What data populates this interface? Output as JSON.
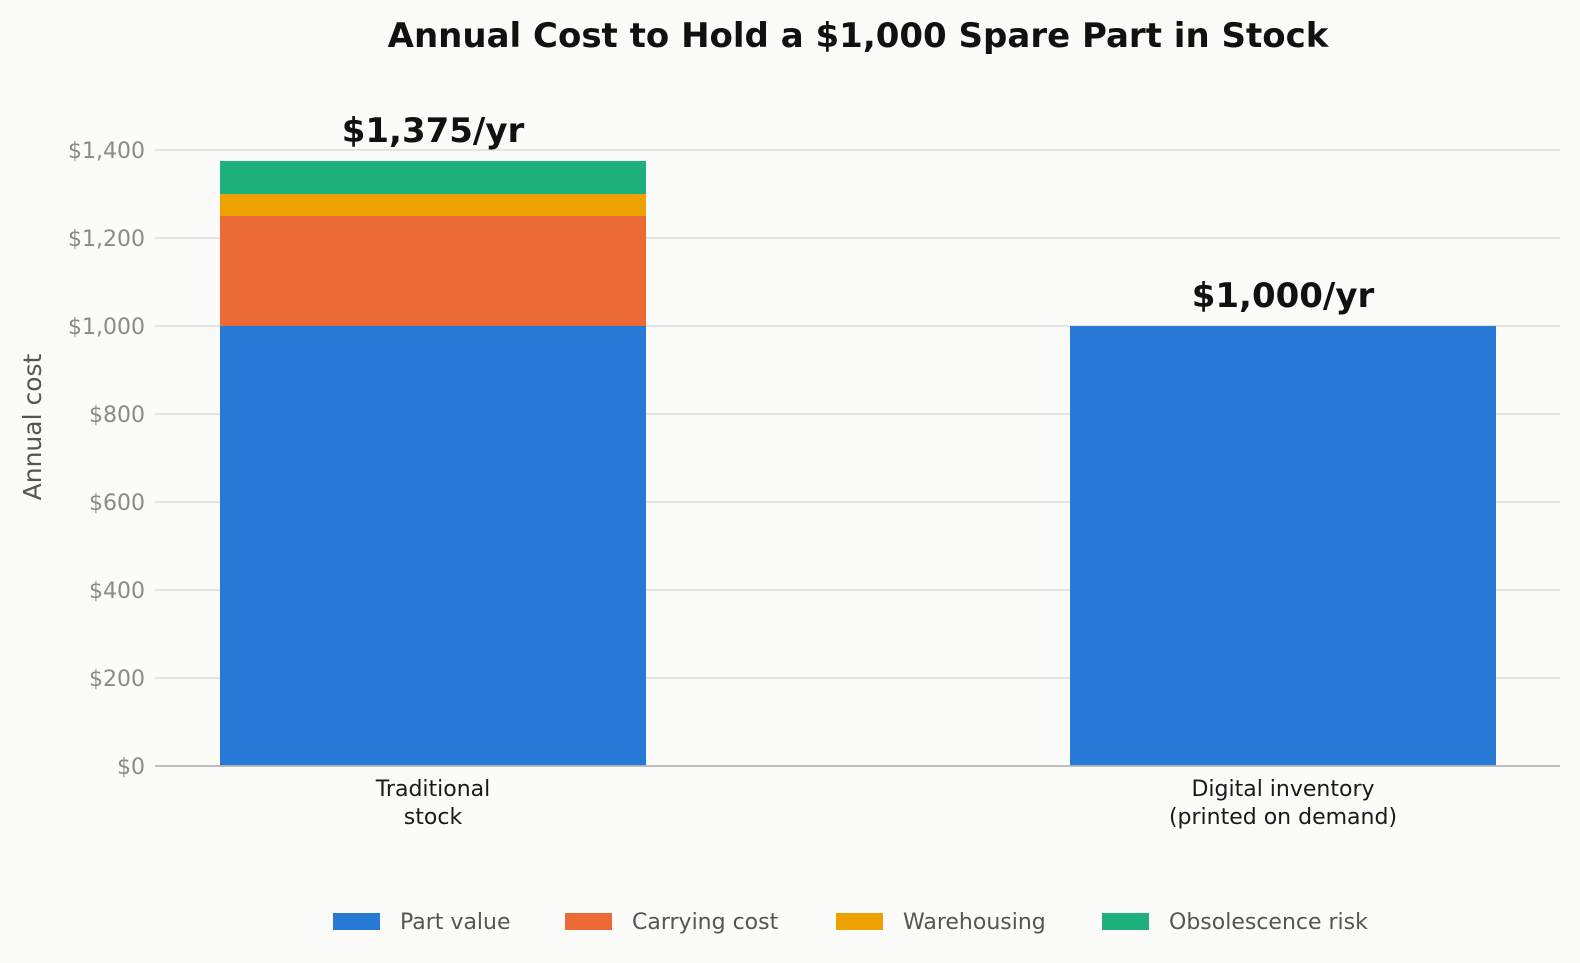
{
  "chart_data": {
    "type": "bar",
    "stacked": true,
    "title": "Annual Cost to Hold a $1,000 Spare Part in Stock",
    "xlabel": "",
    "ylabel": "Annual cost",
    "ylim": [
      0,
      1400
    ],
    "yticks": [
      0,
      200,
      400,
      600,
      800,
      1000,
      1200,
      1400
    ],
    "ytick_labels": [
      "$0",
      "$200",
      "$400",
      "$600",
      "$800",
      "$1,000",
      "$1,200",
      "$1,400"
    ],
    "categories": [
      [
        "Traditional",
        "stock"
      ],
      [
        "Digital inventory",
        "(printed on demand)"
      ]
    ],
    "series": [
      {
        "name": "Part value",
        "color": "#2979d6",
        "values": [
          1000,
          1000
        ]
      },
      {
        "name": "Carrying cost",
        "color": "#eb6a35",
        "values": [
          250,
          0
        ]
      },
      {
        "name": "Warehousing",
        "color": "#eda202",
        "values": [
          50,
          0
        ]
      },
      {
        "name": "Obsolescence risk",
        "color": "#1db07b",
        "values": [
          75,
          0
        ]
      }
    ],
    "totals": [
      1375,
      1000
    ],
    "total_labels": [
      "$1,375/yr",
      "$1,000/yr"
    ],
    "grid": true,
    "legend_position": "bottom"
  }
}
